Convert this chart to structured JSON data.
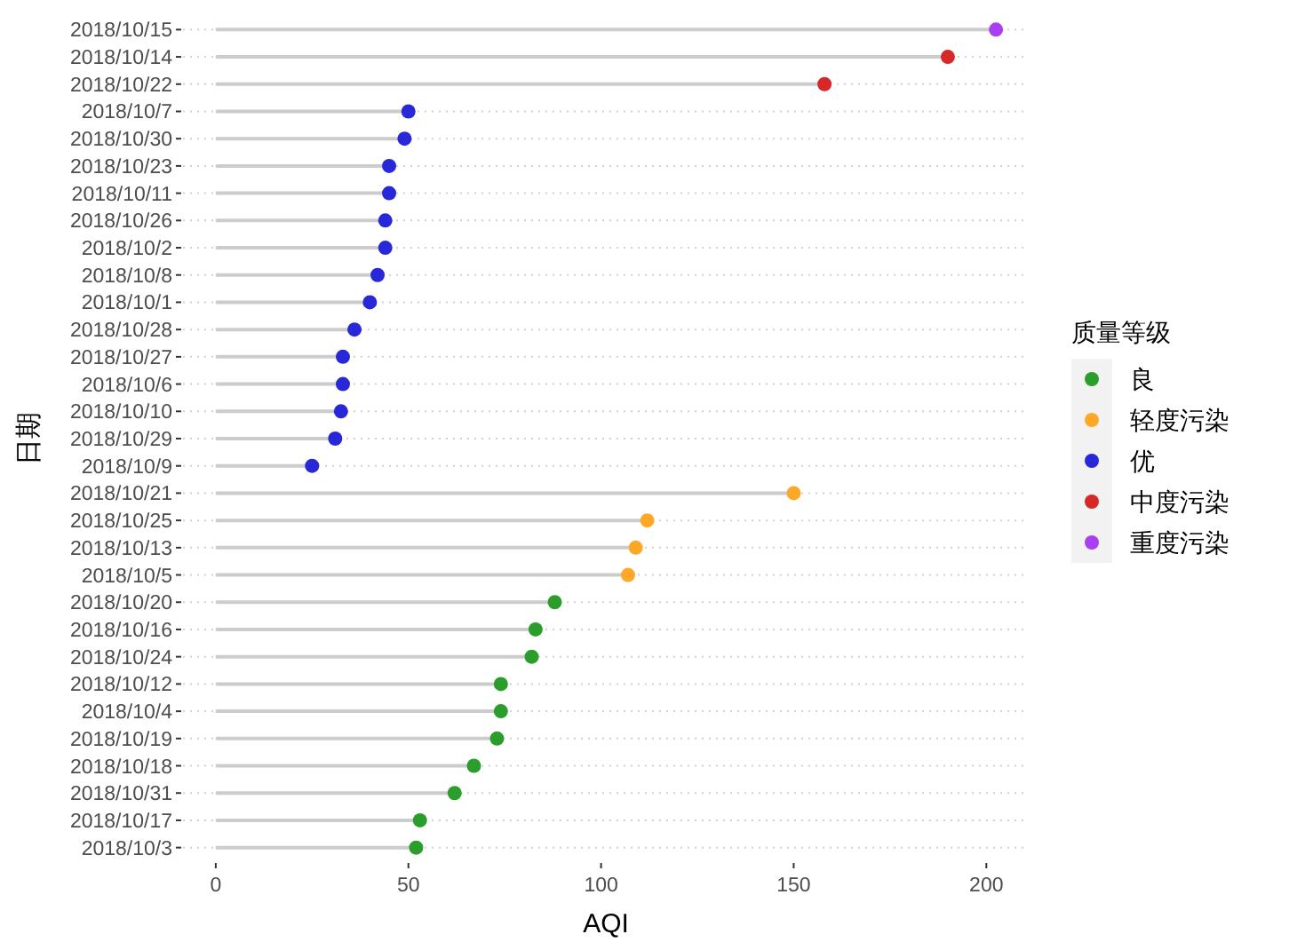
{
  "chart_data": {
    "type": "lollipop",
    "orientation": "horizontal",
    "xlabel": "AQI",
    "ylabel": "日期",
    "legend_title": "质量等级",
    "legend": "right",
    "grid": "y",
    "marker": "circle",
    "categories": [
      "2018/10/15",
      "2018/10/14",
      "2018/10/22",
      "2018/10/7",
      "2018/10/30",
      "2018/10/23",
      "2018/10/11",
      "2018/10/26",
      "2018/10/2",
      "2018/10/8",
      "2018/10/1",
      "2018/10/28",
      "2018/10/27",
      "2018/10/6",
      "2018/10/10",
      "2018/10/29",
      "2018/10/9",
      "2018/10/21",
      "2018/10/25",
      "2018/10/13",
      "2018/10/5",
      "2018/10/20",
      "2018/10/16",
      "2018/10/24",
      "2018/10/12",
      "2018/10/4",
      "2018/10/19",
      "2018/10/18",
      "2018/10/31",
      "2018/10/17",
      "2018/10/3"
    ],
    "xlim": [
      -8.5,
      211
    ],
    "xticks": [
      0,
      50,
      100,
      150,
      200
    ],
    "series": [
      {
        "name": "良",
        "color": "#2a9d2a",
        "values": [
          null,
          null,
          null,
          null,
          null,
          null,
          null,
          null,
          null,
          null,
          null,
          null,
          null,
          null,
          null,
          null,
          null,
          null,
          null,
          null,
          null,
          88,
          83,
          82,
          74,
          74,
          73,
          67,
          62,
          53,
          52
        ]
      },
      {
        "name": "轻度污染",
        "color": "#ffa828",
        "values": [
          null,
          null,
          null,
          null,
          null,
          null,
          null,
          null,
          null,
          null,
          null,
          null,
          null,
          null,
          null,
          null,
          null,
          150,
          112,
          109,
          107,
          null,
          null,
          null,
          null,
          null,
          null,
          null,
          null,
          null,
          null
        ]
      },
      {
        "name": "优",
        "color": "#2828d8",
        "values": [
          null,
          null,
          null,
          50,
          49,
          45,
          45,
          44,
          44,
          42,
          40,
          36,
          33,
          33,
          32.5,
          31,
          25,
          null,
          null,
          null,
          null,
          null,
          null,
          null,
          null,
          null,
          null,
          null,
          null,
          null,
          null
        ]
      },
      {
        "name": "中度污染",
        "color": "#d62828",
        "values": [
          null,
          190,
          158,
          null,
          null,
          null,
          null,
          null,
          null,
          null,
          null,
          null,
          null,
          null,
          null,
          null,
          null,
          null,
          null,
          null,
          null,
          null,
          null,
          null,
          null,
          null,
          null,
          null,
          null,
          null,
          null
        ]
      },
      {
        "name": "重度污染",
        "color": "#a83ff0",
        "values": [
          202.5,
          null,
          null,
          null,
          null,
          null,
          null,
          null,
          null,
          null,
          null,
          null,
          null,
          null,
          null,
          null,
          null,
          null,
          null,
          null,
          null,
          null,
          null,
          null,
          null,
          null,
          null,
          null,
          null,
          null,
          null
        ]
      }
    ]
  }
}
